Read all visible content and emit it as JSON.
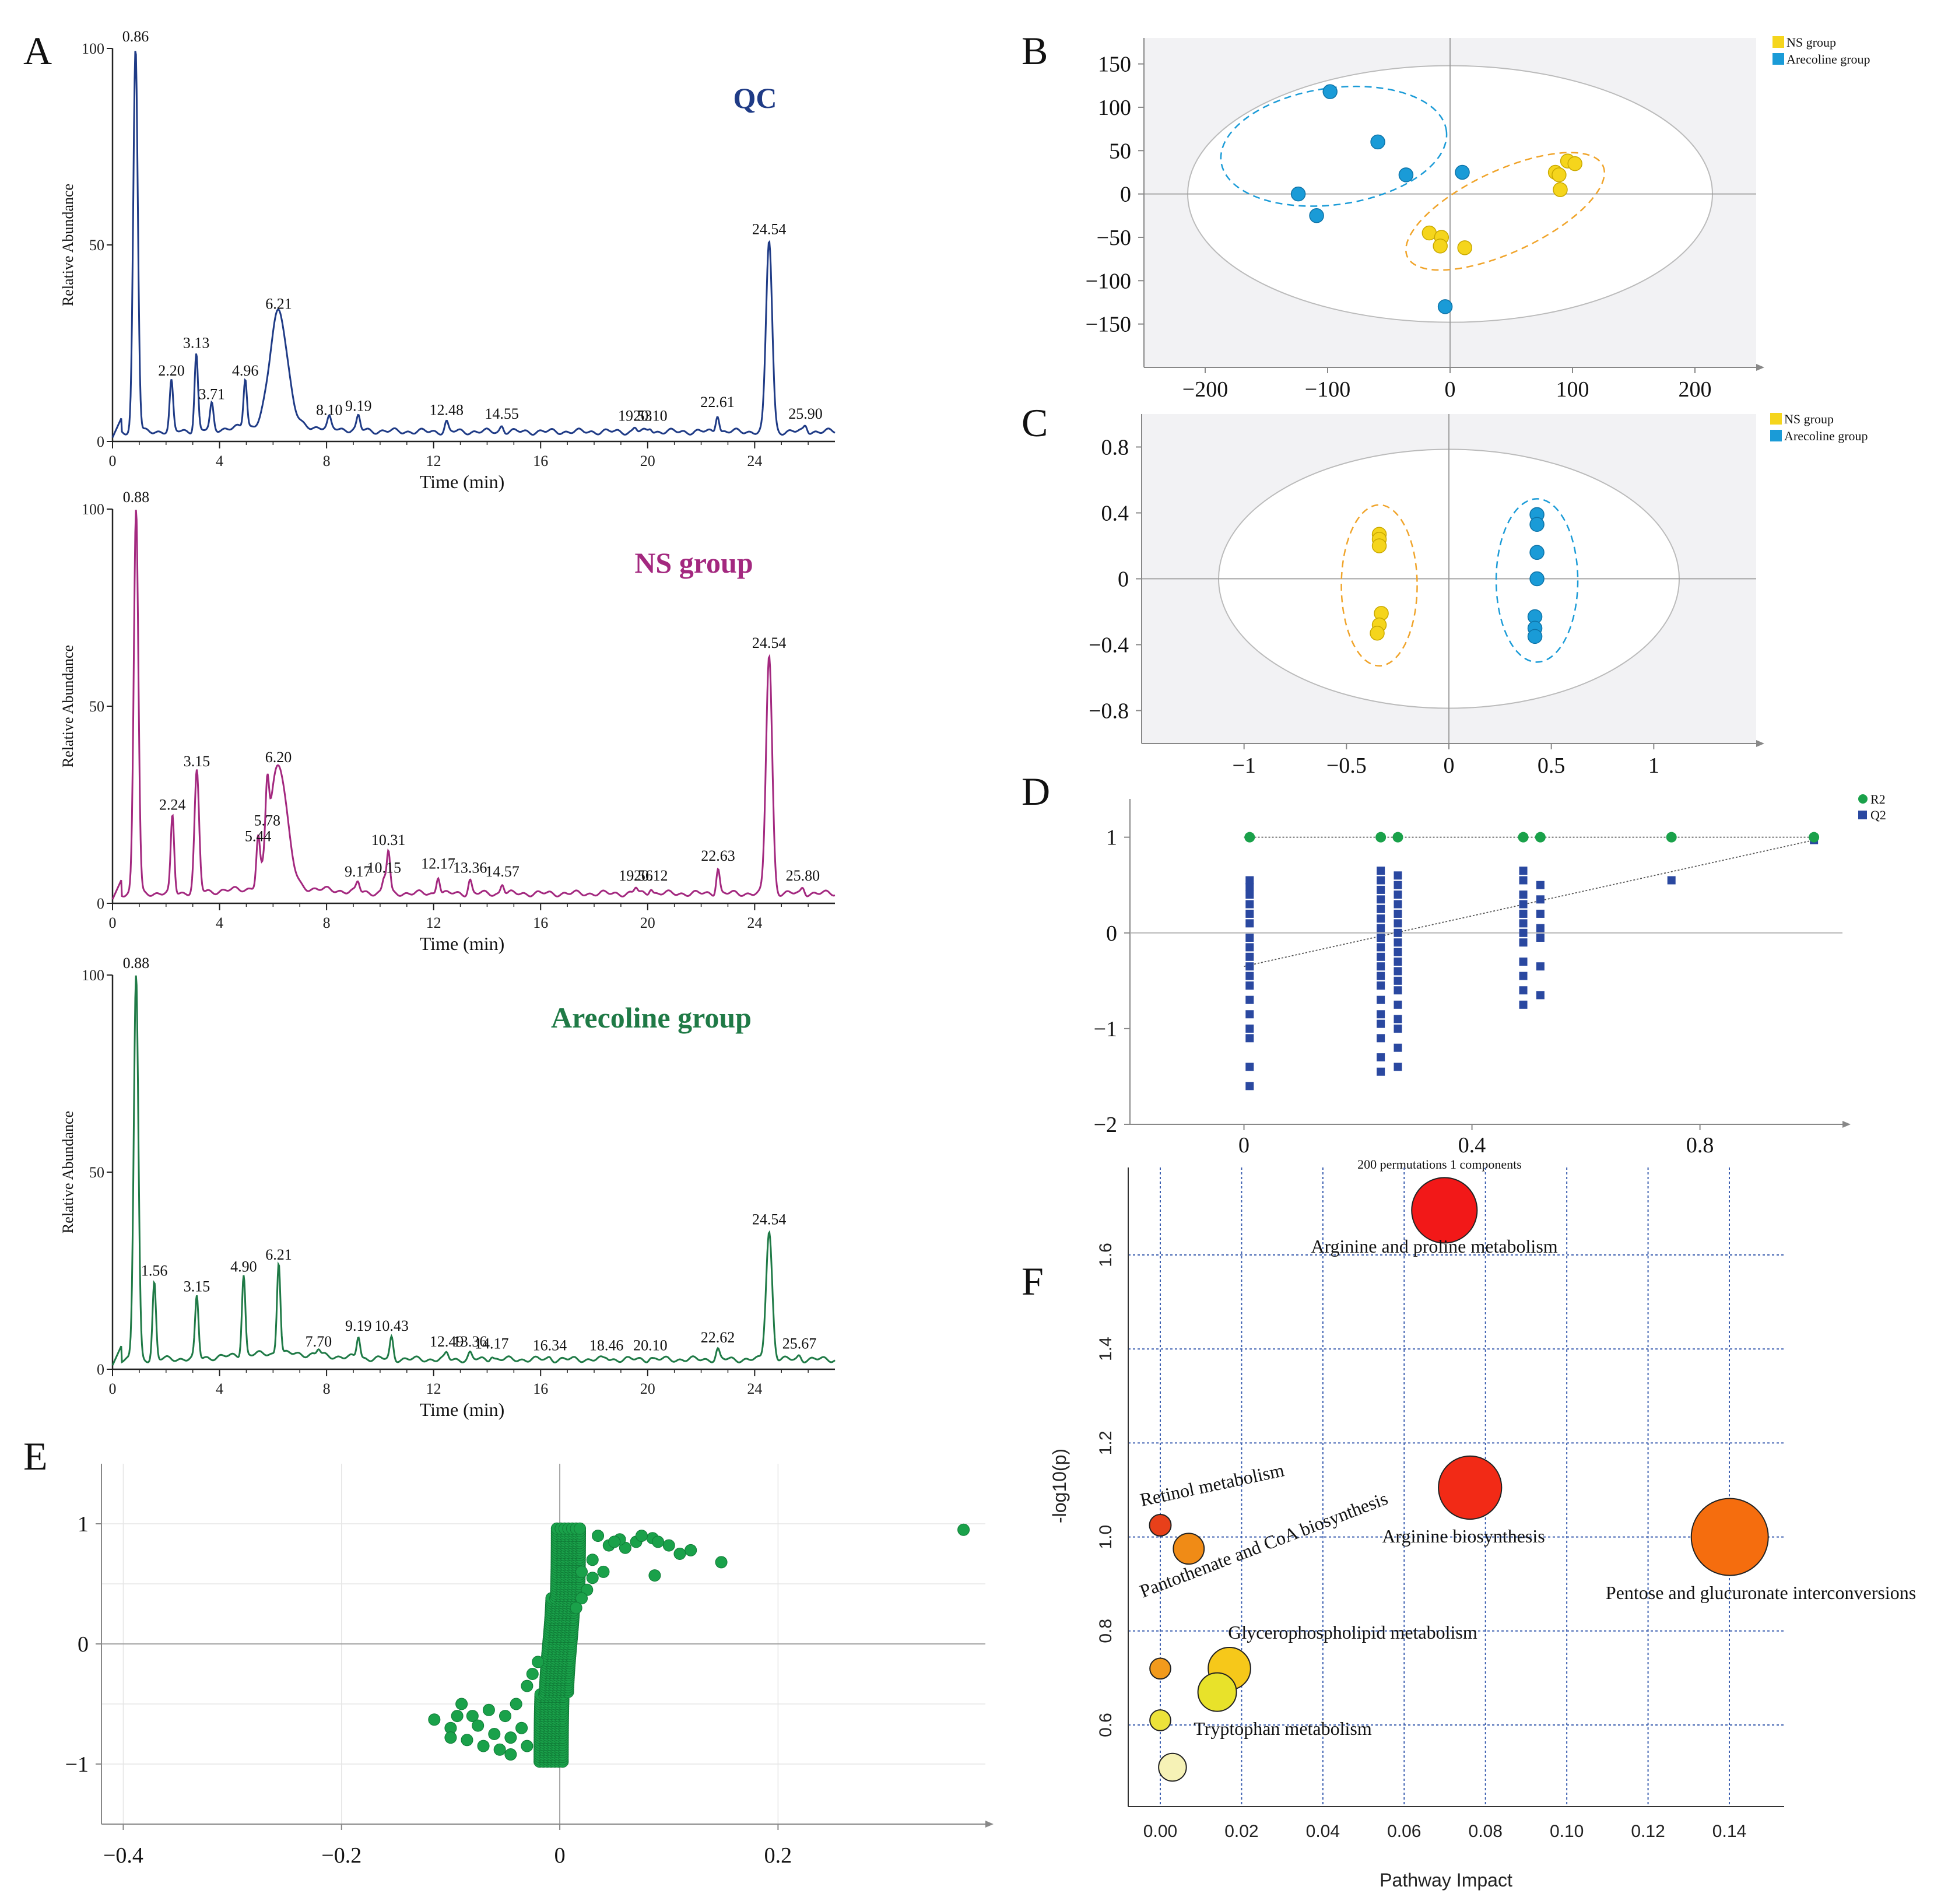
{
  "chart_data": [
    {
      "panel": "A",
      "type": "line",
      "subtitle": "QC",
      "color": "#1f3b86",
      "xlabel": "Time (min)",
      "ylabel": "Relative Abundance",
      "xlim": [
        0,
        27
      ],
      "ylim": [
        0,
        100
      ],
      "xticks": [
        "0",
        "4",
        "8",
        "12",
        "16",
        "20",
        "24"
      ],
      "yticks": [
        "0",
        "50",
        "100"
      ],
      "peaks": [
        {
          "t": 0.86,
          "h": 100,
          "label": "0.86"
        },
        {
          "t": 2.2,
          "h": 15,
          "label": "2.20"
        },
        {
          "t": 3.13,
          "h": 22,
          "label": "3.13"
        },
        {
          "t": 3.71,
          "h": 9,
          "label": "3.71"
        },
        {
          "t": 4.96,
          "h": 15,
          "label": "4.96"
        },
        {
          "t": 6.21,
          "h": 32,
          "label": "6.21"
        },
        {
          "t": 8.1,
          "h": 5,
          "label": "8.10"
        },
        {
          "t": 9.19,
          "h": 6,
          "label": "9.19"
        },
        {
          "t": 12.48,
          "h": 5,
          "label": "12.48"
        },
        {
          "t": 14.55,
          "h": 4,
          "label": "14.55"
        },
        {
          "t": 19.53,
          "h": 3.5,
          "label": "19.53"
        },
        {
          "t": 20.1,
          "h": 3.5,
          "label": "20.10"
        },
        {
          "t": 22.61,
          "h": 7,
          "label": "22.61"
        },
        {
          "t": 24.54,
          "h": 51,
          "label": "24.54"
        },
        {
          "t": 25.9,
          "h": 4,
          "label": "25.90"
        }
      ]
    },
    {
      "panel": "A2",
      "type": "line",
      "subtitle": "NS group",
      "color": "#a3287f",
      "xlabel": "Time (min)",
      "ylabel": "Relative Abundance",
      "xlim": [
        0,
        27
      ],
      "ylim": [
        0,
        100
      ],
      "xticks": [
        "0",
        "4",
        "8",
        "12",
        "16",
        "20",
        "24"
      ],
      "yticks": [
        "0",
        "50",
        "100"
      ],
      "peaks": [
        {
          "t": 0.88,
          "h": 100,
          "label": "0.88"
        },
        {
          "t": 2.24,
          "h": 22,
          "label": "2.24"
        },
        {
          "t": 3.15,
          "h": 33,
          "label": "3.15"
        },
        {
          "t": 5.44,
          "h": 14,
          "label": "5.44"
        },
        {
          "t": 5.78,
          "h": 18,
          "label": "5.78"
        },
        {
          "t": 6.2,
          "h": 34,
          "label": "6.20"
        },
        {
          "t": 9.17,
          "h": 5,
          "label": "9.17"
        },
        {
          "t": 10.15,
          "h": 6,
          "label": "10.15"
        },
        {
          "t": 10.31,
          "h": 13,
          "label": "10.31"
        },
        {
          "t": 12.17,
          "h": 7,
          "label": "12.17"
        },
        {
          "t": 13.36,
          "h": 6,
          "label": "13.36"
        },
        {
          "t": 14.57,
          "h": 5,
          "label": "14.57"
        },
        {
          "t": 19.56,
          "h": 4,
          "label": "19.56"
        },
        {
          "t": 20.12,
          "h": 4,
          "label": "20.12"
        },
        {
          "t": 22.63,
          "h": 9,
          "label": "22.63"
        },
        {
          "t": 24.54,
          "h": 63,
          "label": "24.54"
        },
        {
          "t": 25.8,
          "h": 4,
          "label": "25.80"
        }
      ]
    },
    {
      "panel": "A3",
      "type": "line",
      "subtitle": "Arecoline group",
      "color": "#1f7a46",
      "xlabel": "Time (min)",
      "ylabel": "Relative Abundance",
      "xlim": [
        0,
        27
      ],
      "ylim": [
        0,
        100
      ],
      "xticks": [
        "0",
        "4",
        "8",
        "12",
        "16",
        "20",
        "24"
      ],
      "yticks": [
        "0",
        "50",
        "100"
      ],
      "peaks": [
        {
          "t": 0.88,
          "h": 100,
          "label": "0.88"
        },
        {
          "t": 1.56,
          "h": 22,
          "label": "1.56"
        },
        {
          "t": 3.15,
          "h": 18,
          "label": "3.15"
        },
        {
          "t": 4.9,
          "h": 23,
          "label": "4.90"
        },
        {
          "t": 6.21,
          "h": 26,
          "label": "6.21"
        },
        {
          "t": 7.7,
          "h": 4,
          "label": "7.70"
        },
        {
          "t": 9.19,
          "h": 8,
          "label": "9.19"
        },
        {
          "t": 10.43,
          "h": 8,
          "label": "10.43"
        },
        {
          "t": 12.49,
          "h": 4,
          "label": "12.49"
        },
        {
          "t": 13.36,
          "h": 4,
          "label": "13.36"
        },
        {
          "t": 14.17,
          "h": 3.5,
          "label": "14.17"
        },
        {
          "t": 16.34,
          "h": 3,
          "label": "16.34"
        },
        {
          "t": 18.46,
          "h": 3,
          "label": "18.46"
        },
        {
          "t": 20.1,
          "h": 3,
          "label": "20.10"
        },
        {
          "t": 22.62,
          "h": 5,
          "label": "22.62"
        },
        {
          "t": 24.54,
          "h": 35,
          "label": "24.54"
        },
        {
          "t": 25.67,
          "h": 3.5,
          "label": "25.67"
        }
      ]
    },
    {
      "panel": "B",
      "type": "scatter",
      "xlim": [
        -250,
        250
      ],
      "ylim": [
        -200,
        180
      ],
      "xticks": [
        -200,
        -100,
        0,
        100,
        200
      ],
      "xtick_labels": [
        "−200",
        "−100",
        "0",
        "100",
        "200"
      ],
      "yticks": [
        150,
        100,
        50,
        0,
        -50,
        -100,
        -150
      ],
      "ytick_labels": [
        "150",
        "100",
        "50",
        "0",
        "−50",
        "−100",
        "−150"
      ],
      "legend": [
        "NS group",
        "Arecoline group"
      ],
      "series": [
        {
          "name": "NS group",
          "color": "#f5d51c",
          "points": [
            [
              -17,
              -45
            ],
            [
              -7,
              -50
            ],
            [
              -8,
              -60
            ],
            [
              12,
              -62
            ],
            [
              86,
              25
            ],
            [
              89,
              22
            ],
            [
              90,
              5
            ],
            [
              96,
              38
            ],
            [
              102,
              35
            ]
          ]
        },
        {
          "name": "Arecoline group",
          "color": "#1a9bd7",
          "points": [
            [
              -98,
              118
            ],
            [
              -59,
              60
            ],
            [
              -36,
              22
            ],
            [
              -124,
              0
            ],
            [
              -109,
              -25
            ],
            [
              10,
              25
            ],
            [
              -4,
              -130
            ]
          ]
        }
      ]
    },
    {
      "panel": "C",
      "type": "scatter",
      "xlim": [
        -1.5,
        1.5
      ],
      "ylim": [
        -1.0,
        1.0
      ],
      "xticks": [
        -1,
        -0.5,
        0,
        0.5,
        1
      ],
      "xtick_labels": [
        "−1",
        "−0.5",
        "0",
        "0.5",
        "1"
      ],
      "yticks": [
        0.8,
        0.4,
        0,
        -0.4,
        -0.8
      ],
      "ytick_labels": [
        "0.8",
        "0.4",
        "0",
        "−0.4",
        "−0.8"
      ],
      "legend": [
        "NS group",
        "Arecoline group"
      ],
      "series": [
        {
          "name": "NS group",
          "color": "#f5d51c",
          "points": [
            [
              -0.34,
              0.27
            ],
            [
              -0.34,
              0.24
            ],
            [
              -0.34,
              0.2
            ],
            [
              -0.33,
              -0.21
            ],
            [
              -0.34,
              -0.28
            ],
            [
              -0.35,
              -0.33
            ]
          ]
        },
        {
          "name": "Arecoline group",
          "color": "#1a9bd7",
          "points": [
            [
              0.43,
              0.39
            ],
            [
              0.43,
              0.33
            ],
            [
              0.43,
              0.16
            ],
            [
              0.43,
              0.0
            ],
            [
              0.42,
              -0.23
            ],
            [
              0.42,
              -0.3
            ],
            [
              0.42,
              -0.35
            ]
          ]
        }
      ]
    },
    {
      "panel": "D",
      "type": "scatter",
      "title": "200 permutations 1 components",
      "xlim": [
        -0.2,
        1.05
      ],
      "ylim": [
        -2,
        1.4
      ],
      "xticks": [
        0,
        0.4,
        0.8
      ],
      "xtick_labels": [
        "0",
        "0.4",
        "0.8"
      ],
      "yticks": [
        1,
        0,
        -1,
        -2
      ],
      "ytick_labels": [
        "1",
        "0",
        "−1",
        "−2"
      ],
      "legend": [
        "R2",
        "Q2"
      ],
      "r2_points": [
        [
          0.01,
          1.0
        ],
        [
          0.24,
          1.0
        ],
        [
          0.27,
          1.0
        ],
        [
          0.49,
          1.0
        ],
        [
          0.52,
          1.0
        ],
        [
          0.75,
          1.0
        ],
        [
          1.0,
          1.0
        ]
      ],
      "q2_columns": [
        {
          "x": 0.01,
          "values": [
            0.55,
            0.48,
            0.4,
            0.3,
            0.2,
            0.1,
            -0.05,
            -0.15,
            -0.25,
            -0.35,
            -0.45,
            -0.55,
            -0.7,
            -0.85,
            -1.0,
            -1.1,
            -1.4,
            -1.6
          ]
        },
        {
          "x": 0.24,
          "values": [
            0.65,
            0.55,
            0.45,
            0.35,
            0.25,
            0.15,
            0.05,
            -0.05,
            -0.15,
            -0.25,
            -0.35,
            -0.45,
            -0.55,
            -0.7,
            -0.85,
            -0.95,
            -1.1,
            -1.3,
            -1.45
          ]
        },
        {
          "x": 0.27,
          "values": [
            0.6,
            0.5,
            0.4,
            0.3,
            0.2,
            0.1,
            0.0,
            -0.1,
            -0.2,
            -0.3,
            -0.4,
            -0.5,
            -0.6,
            -0.75,
            -0.9,
            -1.0,
            -1.2,
            -1.4
          ]
        },
        {
          "x": 0.49,
          "values": [
            0.65,
            0.55,
            0.4,
            0.3,
            0.2,
            0.1,
            0.0,
            -0.1,
            -0.3,
            -0.45,
            -0.6,
            -0.75
          ]
        },
        {
          "x": 0.52,
          "values": [
            0.5,
            0.35,
            0.2,
            0.05,
            -0.05,
            -0.35,
            -0.65
          ]
        },
        {
          "x": 0.75,
          "values": [
            0.55
          ]
        },
        {
          "x": 1.0,
          "values": [
            0.97
          ]
        }
      ],
      "r2_line": [
        [
          0.0,
          1.0
        ],
        [
          1.0,
          1.0
        ]
      ],
      "q2_line": [
        [
          0.0,
          -0.35
        ],
        [
          1.0,
          0.97
        ]
      ]
    },
    {
      "panel": "E",
      "type": "scatter",
      "xlim": [
        -0.42,
        0.39
      ],
      "ylim": [
        -1.5,
        1.5
      ],
      "xticks": [
        -0.4,
        -0.2,
        0,
        0.2
      ],
      "xtick_labels": [
        "−0.4",
        "−0.2",
        "0",
        "0.2"
      ],
      "yticks": [
        1,
        0,
        -1
      ],
      "ytick_labels": [
        "1",
        "0",
        "−1"
      ],
      "color": "#1aa14a",
      "points": [
        [
          0.37,
          0.95
        ],
        [
          0.148,
          0.68
        ],
        [
          0.12,
          0.78
        ],
        [
          0.1,
          0.82
        ],
        [
          0.11,
          0.75
        ],
        [
          0.085,
          0.88
        ],
        [
          0.09,
          0.85
        ],
        [
          0.07,
          0.85
        ],
        [
          0.06,
          0.8
        ],
        [
          0.055,
          0.87
        ],
        [
          0.045,
          0.82
        ],
        [
          0.035,
          0.9
        ],
        [
          0.04,
          0.6
        ],
        [
          0.087,
          0.57
        ],
        [
          0.05,
          0.85
        ],
        [
          0.075,
          0.9
        ],
        [
          0.03,
          0.55
        ],
        [
          0.025,
          0.45
        ],
        [
          0.02,
          0.38
        ],
        [
          0.015,
          0.3
        ],
        [
          0.03,
          0.7
        ],
        [
          0.02,
          0.6
        ],
        [
          -0.115,
          -0.63
        ],
        [
          -0.1,
          -0.7
        ],
        [
          -0.09,
          -0.5
        ],
        [
          -0.085,
          -0.8
        ],
        [
          -0.08,
          -0.6
        ],
        [
          -0.07,
          -0.85
        ],
        [
          -0.075,
          -0.68
        ],
        [
          -0.065,
          -0.55
        ],
        [
          -0.06,
          -0.75
        ],
        [
          -0.05,
          -0.6
        ],
        [
          -0.055,
          -0.88
        ],
        [
          -0.045,
          -0.78
        ],
        [
          -0.04,
          -0.5
        ],
        [
          -0.035,
          -0.7
        ],
        [
          -0.03,
          -0.35
        ],
        [
          -0.025,
          -0.25
        ],
        [
          -0.02,
          -0.15
        ],
        [
          -0.1,
          -0.78
        ],
        [
          -0.094,
          -0.6
        ],
        [
          -0.045,
          -0.92
        ],
        [
          -0.03,
          -0.85
        ]
      ],
      "band": {
        "x": [
          -0.012,
          0.012
        ],
        "y": [
          -1.0,
          1.0
        ]
      }
    },
    {
      "panel": "F",
      "type": "scatter",
      "xlabel": "Pathway Impact",
      "ylabel": "-log10(p)",
      "xlim": [
        -0.004,
        0.146
      ],
      "ylim": [
        0.48,
        1.76
      ],
      "xticks": [
        0,
        0.02,
        0.04,
        0.06,
        0.08,
        0.1,
        0.12,
        0.14
      ],
      "xtick_labels": [
        "0.00",
        "0.02",
        "0.04",
        "0.06",
        "0.08",
        "0.10",
        "0.12",
        "0.14"
      ],
      "yticks": [
        0.6,
        0.8,
        1.0,
        1.2,
        1.4,
        1.6
      ],
      "ytick_labels": [
        "0.6",
        "0.8",
        "1.0",
        "1.2",
        "1.4",
        "1.6"
      ],
      "bubbles": [
        {
          "x": 0.0699,
          "y": 1.695,
          "r": 0.85,
          "color": "#f21818",
          "label": "Arginine and proline metabolism"
        },
        {
          "x": 0.0762,
          "y": 1.105,
          "r": 0.82,
          "color": "#f22a16",
          "label": "Arginine biosynthesis"
        },
        {
          "x": 0.1401,
          "y": 1.0,
          "r": 1.0,
          "color": "#f56d0e",
          "label": "Pentose and glucuronate interconversions"
        },
        {
          "x": 0.0,
          "y": 1.025,
          "r": 0.28,
          "color": "#e8401a",
          "label": "Retinol metabolism"
        },
        {
          "x": 0.007,
          "y": 0.975,
          "r": 0.4,
          "color": "#f08b16",
          "label": "Pantothenate and CoA biosynthesis"
        },
        {
          "x": 0.017,
          "y": 0.72,
          "r": 0.55,
          "color": "#f6c81a",
          "label": "Glycerophospholipid metabolism"
        },
        {
          "x": 0.014,
          "y": 0.67,
          "r": 0.5,
          "color": "#e8e22a",
          "label": ""
        },
        {
          "x": 0.0,
          "y": 0.72,
          "r": 0.27,
          "color": "#f29a1c",
          "label": ""
        },
        {
          "x": 0.0,
          "y": 0.61,
          "r": 0.27,
          "color": "#ece23a",
          "label": "Tryptophan metabolism"
        },
        {
          "x": 0.003,
          "y": 0.51,
          "r": 0.36,
          "color": "#f6f2b6",
          "label": ""
        }
      ]
    }
  ],
  "panel_letters": [
    "A",
    "B",
    "C",
    "D",
    "E",
    "F"
  ]
}
